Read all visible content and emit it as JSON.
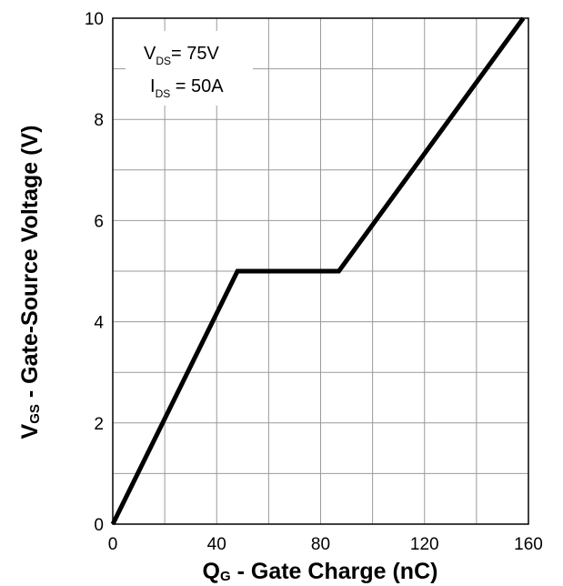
{
  "chart_data": {
    "type": "line",
    "x_axis": {
      "label_main": "Q",
      "label_sub": "G",
      "label_rest": " - Gate Charge (nC)",
      "range": [
        0,
        160
      ],
      "ticks": [
        0,
        40,
        80,
        120,
        160
      ],
      "tick_labels": [
        "0",
        "40",
        "80",
        "120",
        "160"
      ],
      "grid_step": 20
    },
    "y_axis": {
      "label_main": "V",
      "label_sub": "GS",
      "label_rest": " - Gate-Source Voltage (V)",
      "range": [
        0,
        10
      ],
      "ticks": [
        0,
        2,
        4,
        6,
        8,
        10
      ],
      "tick_labels": [
        "0",
        "2",
        "4",
        "6",
        "8",
        "10"
      ],
      "grid_step": 1
    },
    "grid": true,
    "annotations": [
      {
        "main": "V",
        "sub": "DS",
        "rest": "= 75V"
      },
      {
        "main": "I",
        "sub": "DS",
        "rest": " = 50A"
      }
    ],
    "series": [
      {
        "x": [
          0,
          48,
          87,
          158
        ],
        "y": [
          0,
          5,
          5,
          10
        ],
        "color": "#000000"
      }
    ]
  }
}
